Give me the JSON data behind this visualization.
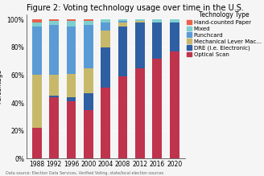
{
  "title": "Figure 2: Voting technology usage over time in the U.S.",
  "xlabel": "",
  "footnote": "Data source: Election Data Services, Verified Voting, state/local election sources",
  "legend_title": "Technology Type",
  "years": [
    1988,
    1992,
    1996,
    2000,
    2004,
    2008,
    2012,
    2016,
    2020
  ],
  "categories": [
    "Optical Scan",
    "DRE (i.e. Electronic)",
    "Mechanical Lever Mac...",
    "Punchcard",
    "Mixed",
    "Hand-counted Paper"
  ],
  "legend_categories": [
    "Hand-counted Paper",
    "Mixed",
    "Punchcard",
    "Mechanical Lever Mac...",
    "DRE (i.e. Electronic)",
    "Optical Scan"
  ],
  "colors": {
    "Hand-counted Paper": "#e8604c",
    "Mixed": "#7ecfcf",
    "Punchcard": "#5b9bd5",
    "Mechanical Lever Mac...": "#c8b96a",
    "DRE (i.e. Electronic)": "#2e5fa3",
    "Optical Scan": "#c0334d"
  },
  "data": {
    "Hand-counted Paper": [
      2,
      1,
      1,
      1,
      0,
      0,
      0,
      0,
      0
    ],
    "Mixed": [
      3,
      3,
      4,
      3,
      2,
      1,
      1,
      2,
      2
    ],
    "Punchcard": [
      35,
      36,
      34,
      31,
      6,
      1,
      0,
      0,
      0
    ],
    "Mechanical Lever Mac...": [
      38,
      15,
      17,
      18,
      12,
      3,
      1,
      0,
      0
    ],
    "DRE (i.e. Electronic)": [
      0,
      1,
      3,
      12,
      29,
      36,
      33,
      26,
      21
    ],
    "Optical Scan": [
      22,
      44,
      41,
      35,
      51,
      59,
      65,
      72,
      77
    ]
  },
  "background_color": "#f5f5f5",
  "plot_bg_color": "#f5f5f5",
  "title_fontsize": 7.0,
  "label_fontsize": 5.5,
  "tick_fontsize": 5.5,
  "legend_fontsize": 5.0,
  "bar_width": 0.55
}
